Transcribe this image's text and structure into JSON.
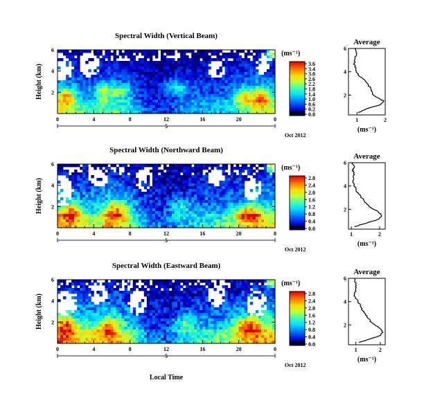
{
  "figure": {
    "x_label": "Local Time",
    "date_label": "Oct 2012",
    "day_number": "5",
    "average_title": "Average",
    "unit_label": "(ms⁻¹)",
    "y_label": "Height (km)"
  },
  "chart_data": [
    {
      "type": "heatmap",
      "title": "Spectral Width (Vertical Beam)",
      "xlabel": "",
      "ylabel": "Height (km)",
      "x_ticks": [
        "0",
        "4",
        "8",
        "12",
        "16",
        "20",
        "0"
      ],
      "xlim": [
        0,
        24
      ],
      "y_ticks": [
        "6",
        "4",
        "2"
      ],
      "ylim": [
        0,
        6
      ],
      "colorbar": {
        "label": "(ms⁻¹)",
        "ticks": [
          "3.6",
          "3.4",
          "3.0",
          "2.6",
          "2.2",
          "1.8",
          "1.4",
          "1.0",
          "0.6",
          "0.2",
          "0.0"
        ],
        "range": [
          0,
          3.6
        ]
      },
      "base_field": [
        [
          0,
          1.8
        ],
        [
          2,
          1.4
        ],
        [
          4,
          1.2
        ],
        [
          6,
          1.4
        ],
        [
          8,
          1.1
        ],
        [
          10,
          0.5
        ],
        [
          12,
          0.4
        ],
        [
          14,
          0.8
        ],
        [
          16,
          0.9
        ],
        [
          18,
          1.0
        ],
        [
          20,
          1.2
        ],
        [
          22,
          1.6
        ],
        [
          24,
          1.5
        ]
      ],
      "hot_spots": [
        [
          1,
          1.6,
          1.0,
          0.8,
          1.6
        ],
        [
          5,
          2.0,
          1.0,
          0.8,
          1.2
        ],
        [
          7,
          2.1,
          1.2,
          0.7,
          1.0
        ],
        [
          13,
          2.4,
          1.5,
          0.9,
          1.0
        ],
        [
          20.5,
          1.6,
          1.0,
          0.8,
          1.5
        ],
        [
          22.5,
          1.5,
          1.0,
          0.9,
          1.6
        ],
        [
          23.6,
          5.7,
          0.6,
          0.5,
          2.2
        ]
      ],
      "blanks": [
        [
          0.5,
          4.2,
          1.2,
          1.2
        ],
        [
          3.5,
          4.6,
          1.2,
          1.2
        ],
        [
          17.5,
          4.2,
          1.0,
          0.8
        ],
        [
          22.5,
          4.5,
          0.8,
          0.8
        ]
      ],
      "average": {
        "title": "Average",
        "xlabel": "(ms⁻¹)",
        "x_ticks": [
          "1",
          "2"
        ],
        "y_ticks": [
          "6",
          "4",
          "2"
        ],
        "xlim": [
          0.7,
          2.0
        ],
        "ylim": [
          0.3,
          6
        ],
        "profile": [
          [
            0.5,
            1.05
          ],
          [
            0.8,
            1.3
          ],
          [
            1.0,
            1.6
          ],
          [
            1.2,
            1.85
          ],
          [
            1.5,
            1.95
          ],
          [
            1.8,
            1.7
          ],
          [
            2.1,
            1.55
          ],
          [
            2.4,
            1.5
          ],
          [
            2.7,
            1.45
          ],
          [
            3.0,
            1.35
          ],
          [
            3.3,
            1.25
          ],
          [
            3.6,
            1.1
          ],
          [
            3.9,
            1.0
          ],
          [
            4.3,
            0.95
          ],
          [
            4.7,
            0.9
          ],
          [
            5.2,
            0.95
          ],
          [
            5.6,
            0.98
          ],
          [
            6.0,
            0.92
          ]
        ]
      }
    },
    {
      "type": "heatmap",
      "title": "Spectral Width (Northward Beam)",
      "xlabel": "",
      "ylabel": "Height (km)",
      "x_ticks": [
        "0",
        "4",
        "8",
        "12",
        "16",
        "20",
        "0"
      ],
      "xlim": [
        0,
        24
      ],
      "y_ticks": [
        "6",
        "4",
        "2"
      ],
      "ylim": [
        0,
        6
      ],
      "colorbar": {
        "label": "(ms⁻¹)",
        "ticks": [
          "2.8",
          "2.4",
          "2.0",
          "1.6",
          "1.2",
          "0.8",
          "0.4",
          "0.0"
        ],
        "range": [
          0,
          2.8
        ]
      },
      "base_field": [
        [
          0,
          1.7
        ],
        [
          2,
          1.4
        ],
        [
          4,
          1.3
        ],
        [
          6,
          1.5
        ],
        [
          8,
          1.2
        ],
        [
          10,
          0.6
        ],
        [
          12,
          0.5
        ],
        [
          14,
          0.7
        ],
        [
          16,
          0.9
        ],
        [
          18,
          1.0
        ],
        [
          20,
          1.2
        ],
        [
          22,
          1.5
        ],
        [
          24,
          1.4
        ]
      ],
      "hot_spots": [
        [
          1.5,
          1.4,
          1.2,
          0.8,
          1.2
        ],
        [
          6.5,
          1.5,
          1.3,
          0.9,
          1.2
        ],
        [
          13.5,
          1.9,
          1.2,
          0.8,
          0.8
        ],
        [
          21,
          1.3,
          1.5,
          0.7,
          1.3
        ],
        [
          23.6,
          5.7,
          0.6,
          0.5,
          1.8
        ]
      ],
      "blanks": [
        [
          0.5,
          3.5,
          1.2,
          1.5
        ],
        [
          4.5,
          4.8,
          1.2,
          1.0
        ],
        [
          9.5,
          4.5,
          1.0,
          1.0
        ],
        [
          17.5,
          4.8,
          1.0,
          0.8
        ],
        [
          21.5,
          3.8,
          1.0,
          1.2
        ]
      ],
      "average": {
        "title": "Average",
        "xlabel": "(ms⁻¹)",
        "x_ticks": [
          "1",
          "2"
        ],
        "y_ticks": [
          "6",
          "4",
          "2"
        ],
        "xlim": [
          0.9,
          2.2
        ],
        "ylim": [
          0.3,
          6
        ],
        "profile": [
          [
            0.5,
            1.1
          ],
          [
            0.8,
            1.5
          ],
          [
            1.1,
            1.9
          ],
          [
            1.4,
            2.1
          ],
          [
            1.7,
            2.0
          ],
          [
            2.0,
            1.8
          ],
          [
            2.3,
            1.6
          ],
          [
            2.6,
            1.5
          ],
          [
            2.9,
            1.4
          ],
          [
            3.2,
            1.3
          ],
          [
            3.5,
            1.2
          ],
          [
            3.8,
            1.15
          ],
          [
            4.1,
            1.1
          ],
          [
            4.5,
            1.05
          ],
          [
            4.9,
            1.1
          ],
          [
            5.3,
            1.05
          ],
          [
            5.7,
            1.1
          ],
          [
            6.0,
            1.02
          ]
        ]
      }
    },
    {
      "type": "heatmap",
      "title": "Spectral Width (Eastward Beam)",
      "xlabel": "Local Time",
      "ylabel": "Height (km)",
      "x_ticks": [
        "0",
        "4",
        "8",
        "12",
        "16",
        "20",
        "0"
      ],
      "xlim": [
        0,
        24
      ],
      "y_ticks": [
        "6",
        "4",
        "2"
      ],
      "ylim": [
        0,
        6
      ],
      "colorbar": {
        "label": "(ms⁻¹)",
        "ticks": [
          "2.8",
          "2.4",
          "2.0",
          "1.6",
          "1.2",
          "0.8",
          "0.4",
          "0.0"
        ],
        "range": [
          0,
          2.8
        ]
      },
      "base_field": [
        [
          0,
          1.8
        ],
        [
          2,
          1.5
        ],
        [
          4,
          1.4
        ],
        [
          6,
          1.6
        ],
        [
          8,
          1.3
        ],
        [
          10,
          0.6
        ],
        [
          12,
          0.5
        ],
        [
          14,
          0.8
        ],
        [
          16,
          1.0
        ],
        [
          18,
          1.1
        ],
        [
          20,
          1.4
        ],
        [
          22,
          1.7
        ],
        [
          24,
          1.6
        ]
      ],
      "hot_spots": [
        [
          1,
          1.6,
          1.2,
          0.9,
          1.2
        ],
        [
          5.5,
          1.5,
          1.3,
          0.8,
          1.0
        ],
        [
          14,
          1.8,
          1.2,
          0.8,
          0.9
        ],
        [
          21,
          1.6,
          1.5,
          0.8,
          1.3
        ],
        [
          23.6,
          5.7,
          0.6,
          0.5,
          1.8
        ]
      ],
      "blanks": [
        [
          1.0,
          3.8,
          1.3,
          1.2
        ],
        [
          4.5,
          4.6,
          1.0,
          1.0
        ],
        [
          8.8,
          3.9,
          1.0,
          1.2
        ],
        [
          17.5,
          4.5,
          1.0,
          1.0
        ],
        [
          22,
          3.7,
          1.2,
          1.2
        ]
      ],
      "average": {
        "title": "Average",
        "xlabel": "(ms⁻¹)",
        "x_ticks": [
          "1",
          "2"
        ],
        "y_ticks": [
          "6",
          "4",
          "2"
        ],
        "xlim": [
          0.7,
          2.2
        ],
        "ylim": [
          0.3,
          6
        ],
        "profile": [
          [
            0.5,
            1.1
          ],
          [
            0.8,
            1.6
          ],
          [
            1.1,
            2.0
          ],
          [
            1.4,
            2.1
          ],
          [
            1.7,
            2.0
          ],
          [
            2.0,
            1.8
          ],
          [
            2.3,
            1.6
          ],
          [
            2.6,
            1.5
          ],
          [
            2.9,
            1.4
          ],
          [
            3.2,
            1.3
          ],
          [
            3.5,
            1.2
          ],
          [
            3.8,
            1.15
          ],
          [
            4.1,
            1.05
          ],
          [
            4.5,
            0.95
          ],
          [
            4.9,
            0.98
          ],
          [
            5.3,
            1.0
          ],
          [
            5.7,
            0.98
          ],
          [
            6.0,
            0.95
          ]
        ]
      }
    }
  ]
}
